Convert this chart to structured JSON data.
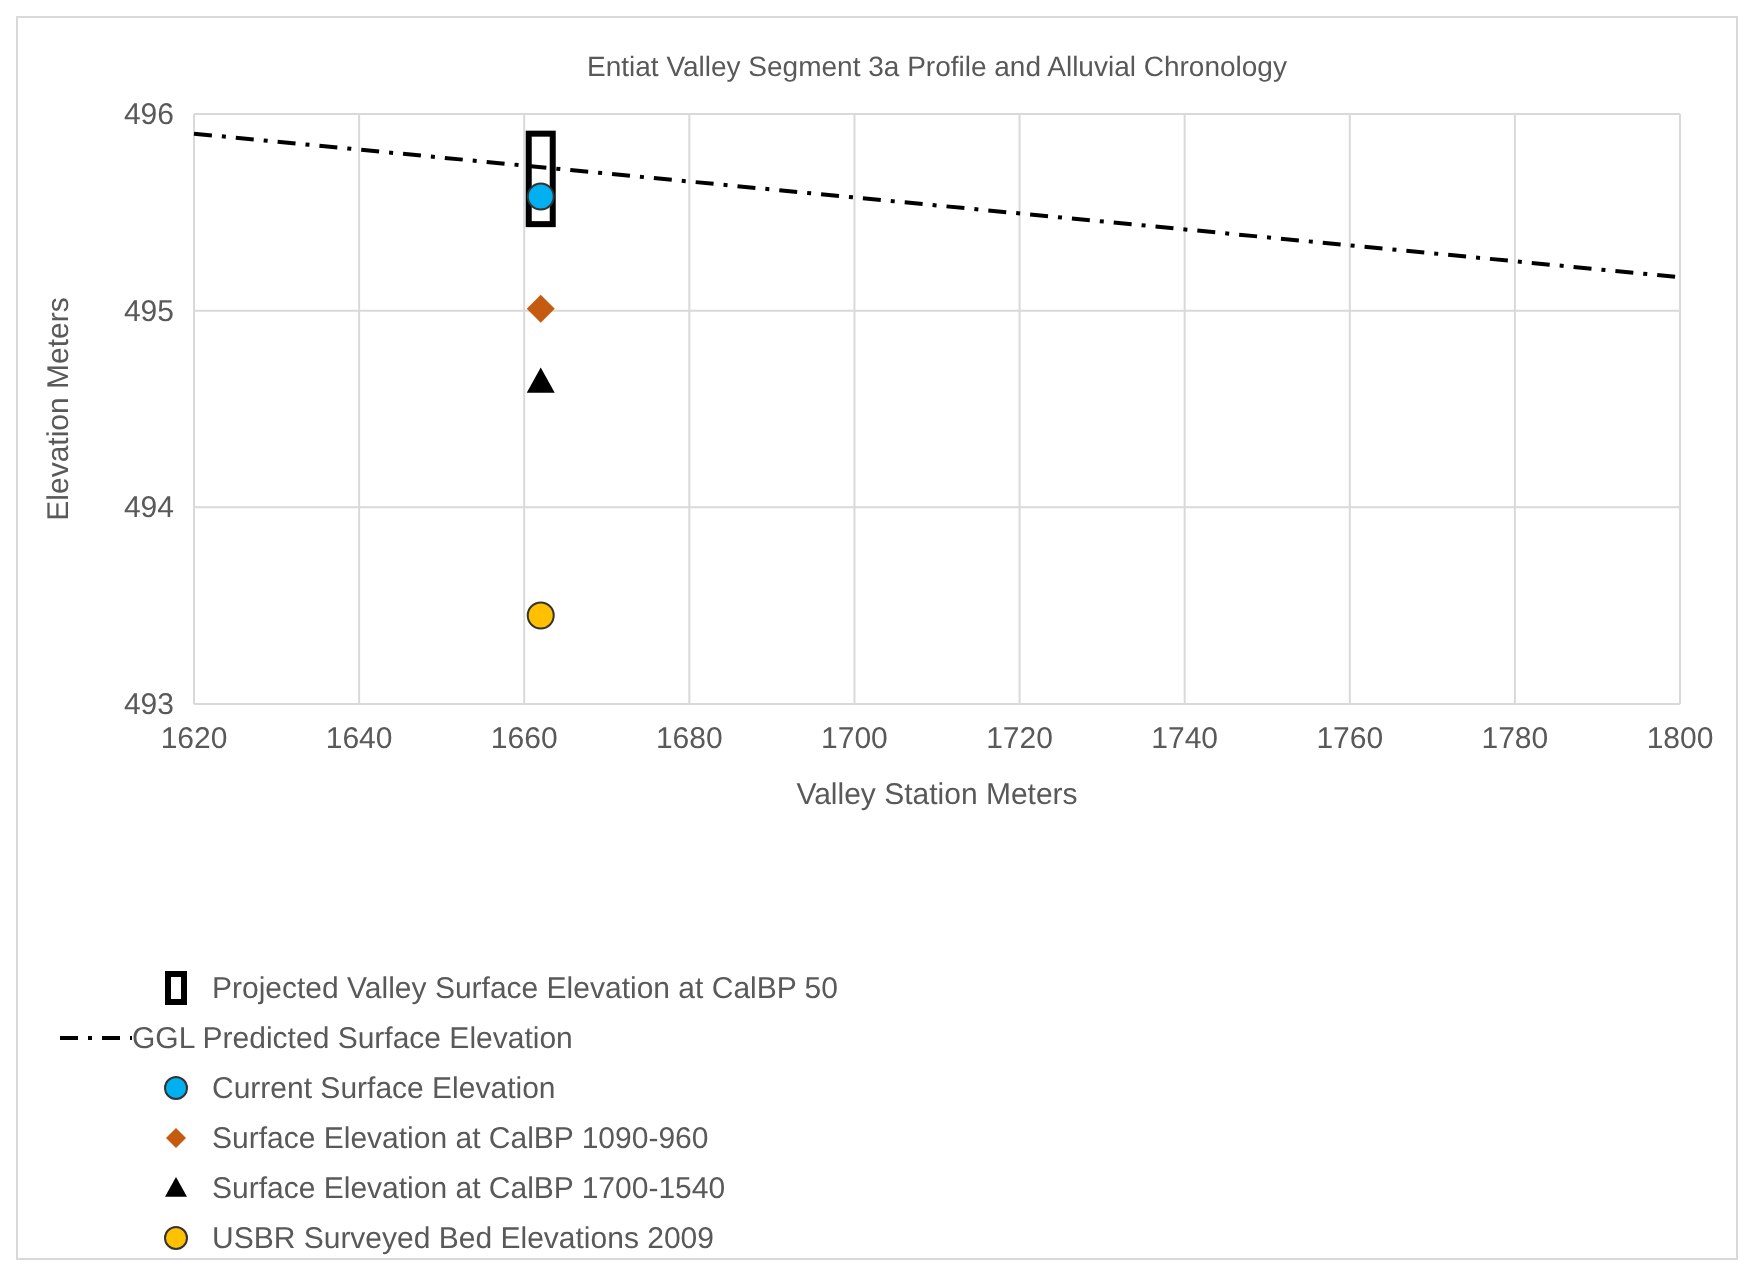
{
  "chart_data": {
    "type": "scatter",
    "title": "Entiat Valley Segment 3a Profile and Alluvial Chronology",
    "xlabel": "Valley Station Meters",
    "ylabel": "Elevation Meters",
    "xlim": [
      1620,
      1800
    ],
    "xticks": [
      1620,
      1640,
      1660,
      1680,
      1700,
      1720,
      1740,
      1760,
      1780,
      1800
    ],
    "ylim": [
      493,
      496
    ],
    "yticks": [
      493,
      494,
      495,
      496
    ],
    "grid": true,
    "legend": "bottom",
    "series": [
      {
        "name": "Projected Valley Surface Elevation at CalBP 50",
        "type": "bar",
        "color": "#000000",
        "x": [
          1662
        ],
        "base": [
          495.44
        ],
        "values": [
          0.46
        ]
      },
      {
        "name": "GGL Predicted Surface Elevation",
        "type": "line",
        "marker": "none",
        "line_style": "dashed",
        "color": "#000000",
        "x": [
          1620,
          1800
        ],
        "values": [
          495.9,
          495.17
        ]
      },
      {
        "name": "Current Surface Elevation",
        "type": "scatter",
        "marker": "circle",
        "color": "#00b0f0",
        "x": [
          1662
        ],
        "values": [
          495.58
        ]
      },
      {
        "name": "Surface Elevation at CalBP 1090-960",
        "marker": "diamond",
        "color": "#c55a11",
        "x": [
          1662
        ],
        "values": [
          495.01
        ]
      },
      {
        "name": "Surface Elevation at CalBP 1700-1540",
        "marker": "triangle",
        "color": "#000000",
        "x": [
          1662
        ],
        "values": [
          494.64
        ]
      },
      {
        "name": "USBR Surveyed Bed Elevations 2009",
        "marker": "circle",
        "color": "#ffc000",
        "x": [
          1662
        ],
        "values": [
          493.45
        ]
      }
    ]
  }
}
